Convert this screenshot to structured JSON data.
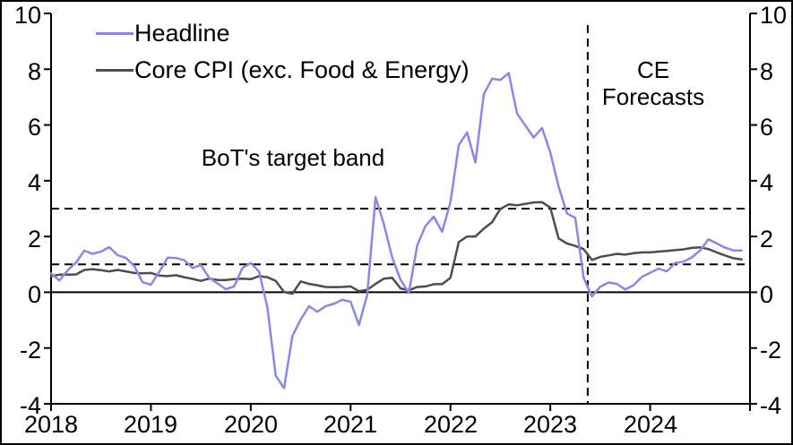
{
  "legend": {
    "items": [
      {
        "label": "Headline",
        "color": "#8888e8"
      },
      {
        "label": "Core CPI (exc. Food & Energy)",
        "color": "#4d4d4d"
      }
    ]
  },
  "annotations": {
    "target_band_label": "BoT's target band",
    "forecast_label": "CE\nForecasts"
  },
  "axes": {
    "y_left": [
      "10",
      "8",
      "6",
      "4",
      "2",
      "0",
      "-2",
      "-4"
    ],
    "y_right": [
      "10",
      "8",
      "6",
      "4",
      "2",
      "0",
      "-2",
      "-4"
    ],
    "x": [
      "2018",
      "2019",
      "2020",
      "2021",
      "2022",
      "2023",
      "2024"
    ]
  },
  "chart_data": {
    "type": "line",
    "frequency": "monthly",
    "x_start": "2018-01",
    "x_end": "2024-12",
    "xticks": [
      "2018",
      "2019",
      "2020",
      "2021",
      "2022",
      "2023",
      "2024"
    ],
    "ylim": [
      -4,
      10
    ],
    "yticks": [
      10,
      8,
      6,
      4,
      2,
      0,
      -2,
      -4
    ],
    "grid": false,
    "legend_position": "top-left-inside",
    "target_band": {
      "lower": 1,
      "upper": 3,
      "label": "BoT's target band"
    },
    "forecast_start": "2023-06",
    "forecast_label": "CE Forecasts",
    "series": [
      {
        "name": "Headline",
        "color": "#8888e8",
        "values": [
          0.68,
          0.42,
          0.79,
          1.07,
          1.49,
          1.38,
          1.46,
          1.62,
          1.33,
          1.23,
          0.94,
          0.36,
          0.27,
          0.73,
          1.24,
          1.23,
          1.15,
          0.87,
          0.98,
          0.52,
          0.32,
          0.11,
          0.21,
          0.87,
          1.05,
          0.74,
          -0.54,
          -2.99,
          -3.44,
          -1.57,
          -0.98,
          -0.5,
          -0.7,
          -0.5,
          -0.41,
          -0.27,
          -0.34,
          -1.17,
          -0.08,
          3.41,
          2.44,
          1.25,
          0.45,
          -0.02,
          1.68,
          2.38,
          2.71,
          2.17,
          3.23,
          5.28,
          5.73,
          4.65,
          7.1,
          7.66,
          7.61,
          7.86,
          6.41,
          5.98,
          5.55,
          5.89,
          5.02,
          3.79,
          2.83,
          2.67,
          0.53,
          -0.15,
          0.2,
          0.35,
          0.3,
          0.1,
          0.25,
          0.55,
          0.7,
          0.85,
          0.75,
          1.05,
          1.1,
          1.25,
          1.5,
          1.9,
          1.75,
          1.6,
          1.5,
          1.5
        ]
      },
      {
        "name": "Core CPI (exc. Food & Energy)",
        "color": "#4d4d4d",
        "values": [
          0.58,
          0.63,
          0.63,
          0.64,
          0.8,
          0.83,
          0.79,
          0.75,
          0.8,
          0.75,
          0.69,
          0.68,
          0.69,
          0.6,
          0.58,
          0.61,
          0.54,
          0.48,
          0.41,
          0.49,
          0.44,
          0.44,
          0.47,
          0.49,
          0.47,
          0.58,
          0.54,
          0.41,
          0.01,
          -0.05,
          0.39,
          0.3,
          0.25,
          0.19,
          0.18,
          0.19,
          0.21,
          0.04,
          0.09,
          0.3,
          0.49,
          0.52,
          0.14,
          0.07,
          0.19,
          0.21,
          0.29,
          0.29,
          0.52,
          1.8,
          2.0,
          2.0,
          2.28,
          2.51,
          2.99,
          3.15,
          3.12,
          3.17,
          3.22,
          3.23,
          3.04,
          1.93,
          1.75,
          1.66,
          1.55,
          1.16,
          1.27,
          1.32,
          1.38,
          1.35,
          1.4,
          1.43,
          1.43,
          1.46,
          1.48,
          1.51,
          1.54,
          1.59,
          1.61,
          1.55,
          1.43,
          1.32,
          1.22,
          1.18
        ]
      }
    ]
  }
}
